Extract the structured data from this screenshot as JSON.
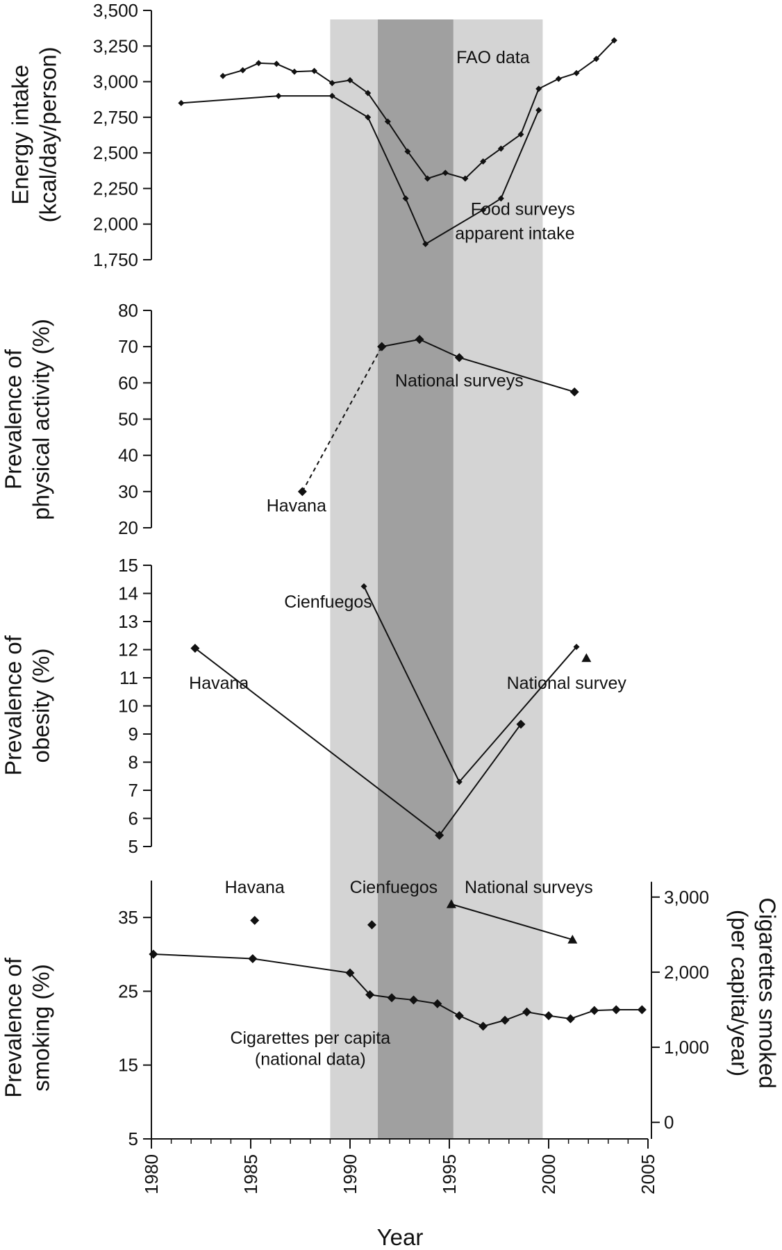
{
  "xlabel": "Year",
  "x_ticks": [
    1980,
    1985,
    1990,
    1995,
    2000,
    2005
  ],
  "shading": {
    "light": {
      "from": 1989.0,
      "to": 1999.7,
      "color": "#d4d4d4"
    },
    "dark": {
      "from": 1991.4,
      "to": 1995.2,
      "color": "#a0a0a0"
    }
  },
  "chart_data": [
    {
      "type": "line",
      "ylabel_lines": [
        "Energy intake",
        "(kcal/day/person)"
      ],
      "ylim": [
        1750,
        3500
      ],
      "ticks": [
        1750,
        2000,
        2250,
        2500,
        2750,
        3000,
        3250,
        3500
      ],
      "tick_labels": [
        "1,750",
        "2,000",
        "2,250",
        "2,500",
        "2,750",
        "3,000",
        "3,250",
        "3,500"
      ],
      "series": [
        {
          "name": "FAO data",
          "marker": "diamond-small",
          "x": [
            1983.6,
            1984.6,
            1985.4,
            1986.3,
            1987.2,
            1988.2,
            1989.1,
            1990.0,
            1990.9,
            1991.9,
            1992.9,
            1993.9,
            1994.8,
            1995.8,
            1996.7,
            1997.6,
            1998.6,
            1999.5,
            2000.5,
            2001.4,
            2002.4,
            2003.3
          ],
          "y": [
            3040,
            3080,
            3130,
            3125,
            3070,
            3075,
            2990,
            3010,
            2920,
            2720,
            2510,
            2320,
            2360,
            2320,
            2440,
            2530,
            2630,
            2950,
            3020,
            3060,
            3160,
            3290
          ]
        },
        {
          "name": "Food surveys apparent intake",
          "marker": "diamond-small",
          "x": [
            1981.5,
            1986.4,
            1989.1,
            1990.9,
            1992.8,
            1993.8,
            1996.7,
            1997.6,
            1999.5
          ],
          "y": [
            2850,
            2900,
            2900,
            2750,
            2180,
            1860,
            2100,
            2180,
            2800
          ]
        }
      ],
      "annotations": [
        {
          "text": "FAO data",
          "x": 1997.2,
          "y": 3130
        },
        {
          "text": "Food surveys",
          "x": 1998.7,
          "y": 2065
        },
        {
          "text": "apparent intake",
          "x": 1998.3,
          "y": 1895
        }
      ]
    },
    {
      "type": "line",
      "ylabel_lines": [
        "Prevalence of",
        "physical activity (%)"
      ],
      "ylim": [
        20,
        80
      ],
      "ticks": [
        20,
        30,
        40,
        50,
        60,
        70,
        80
      ],
      "tick_labels": [
        "20",
        "30",
        "40",
        "50",
        "60",
        "70",
        "80"
      ],
      "series": [
        {
          "name": "National surveys",
          "marker": "diamond",
          "x": [
            1991.6,
            1993.5,
            1995.5,
            2001.3
          ],
          "y": [
            70,
            72,
            67,
            57.5
          ]
        },
        {
          "name": "Havana",
          "marker": "diamond",
          "dashed_to_next": true,
          "x": [
            1987.6,
            1991.6
          ],
          "y": [
            30,
            70
          ]
        }
      ],
      "annotations": [
        {
          "text": "National surveys",
          "x": 1995.5,
          "y": 59
        },
        {
          "text": "Havana",
          "x": 1987.3,
          "y": 24.5
        }
      ]
    },
    {
      "type": "line",
      "ylabel_lines": [
        "Prevalence of",
        "obesity (%)"
      ],
      "ylim": [
        5,
        15
      ],
      "ticks": [
        5,
        6,
        7,
        8,
        9,
        10,
        11,
        12,
        13,
        14,
        15
      ],
      "tick_labels": [
        "5",
        "6",
        "7",
        "8",
        "9",
        "10",
        "11",
        "12",
        "13",
        "14",
        "15"
      ],
      "series": [
        {
          "name": "Havana",
          "marker": "diamond",
          "x": [
            1982.2,
            1994.5,
            1998.6
          ],
          "y": [
            12.05,
            5.4,
            9.35
          ]
        },
        {
          "name": "Cienfuegos",
          "marker": "diamond-small",
          "x": [
            1990.7,
            1995.5,
            2001.4
          ],
          "y": [
            14.25,
            7.3,
            12.1
          ]
        },
        {
          "name": "National survey",
          "marker": "triangle",
          "x": [
            2001.9
          ],
          "y": [
            11.7
          ]
        }
      ],
      "annotations": [
        {
          "text": "Cienfuegos",
          "x": 1988.9,
          "y": 13.5
        },
        {
          "text": "Havana",
          "x": 1983.4,
          "y": 10.6
        },
        {
          "text": "National survey",
          "x": 2000.9,
          "y": 10.6
        }
      ]
    },
    {
      "type": "line",
      "ylabel_lines": [
        "Prevalence of",
        "smoking (%)"
      ],
      "ylabel_right_lines": [
        "Cigarettes smoked",
        "(per capita/year)"
      ],
      "ylim": [
        5,
        40
      ],
      "ticks": [
        5,
        15,
        25,
        35
      ],
      "tick_labels": [
        "5",
        "15",
        "25",
        "35"
      ],
      "ylim_right": [
        -220,
        3220
      ],
      "ticks_right": [
        0,
        1000,
        2000,
        3000
      ],
      "tick_labels_right": [
        "0",
        "1,000",
        "2,000",
        "3,000"
      ],
      "series": [
        {
          "name": "Havana",
          "axis": "left",
          "marker": "diamond",
          "x": [
            1985.2
          ],
          "y": [
            34.6
          ]
        },
        {
          "name": "Cienfuegos",
          "axis": "left",
          "marker": "diamond",
          "x": [
            1991.1
          ],
          "y": [
            34
          ]
        },
        {
          "name": "National surveys",
          "axis": "left",
          "marker": "triangle",
          "x": [
            1995.1,
            2001.2
          ],
          "y": [
            36.8,
            32
          ]
        },
        {
          "name": "Cigarettes per capita (national data)",
          "axis": "right",
          "marker": "diamond",
          "x": [
            1980.1,
            1985.1,
            1990.0,
            1991.0,
            1992.1,
            1993.2,
            1994.4,
            1995.5,
            1996.7,
            1997.8,
            1998.9,
            2000.0,
            2001.1,
            2002.3,
            2003.4,
            2004.7
          ],
          "y": [
            2240,
            2180,
            1990,
            1700,
            1660,
            1630,
            1580,
            1420,
            1280,
            1360,
            1470,
            1420,
            1380,
            1490,
            1500,
            1500
          ]
        }
      ],
      "annotations": [
        {
          "text": "Havana",
          "x": 1985.2,
          "y": 38.3
        },
        {
          "text": "Cienfuegos",
          "x": 1992.2,
          "y": 38.3
        },
        {
          "text": "National surveys",
          "x": 1999.0,
          "y": 38.3
        },
        {
          "text": "Cigarettes per capita",
          "x": 1988.0,
          "y": 17.9
        },
        {
          "text": "(national data)",
          "x": 1988.0,
          "y": 15.0
        }
      ]
    }
  ]
}
